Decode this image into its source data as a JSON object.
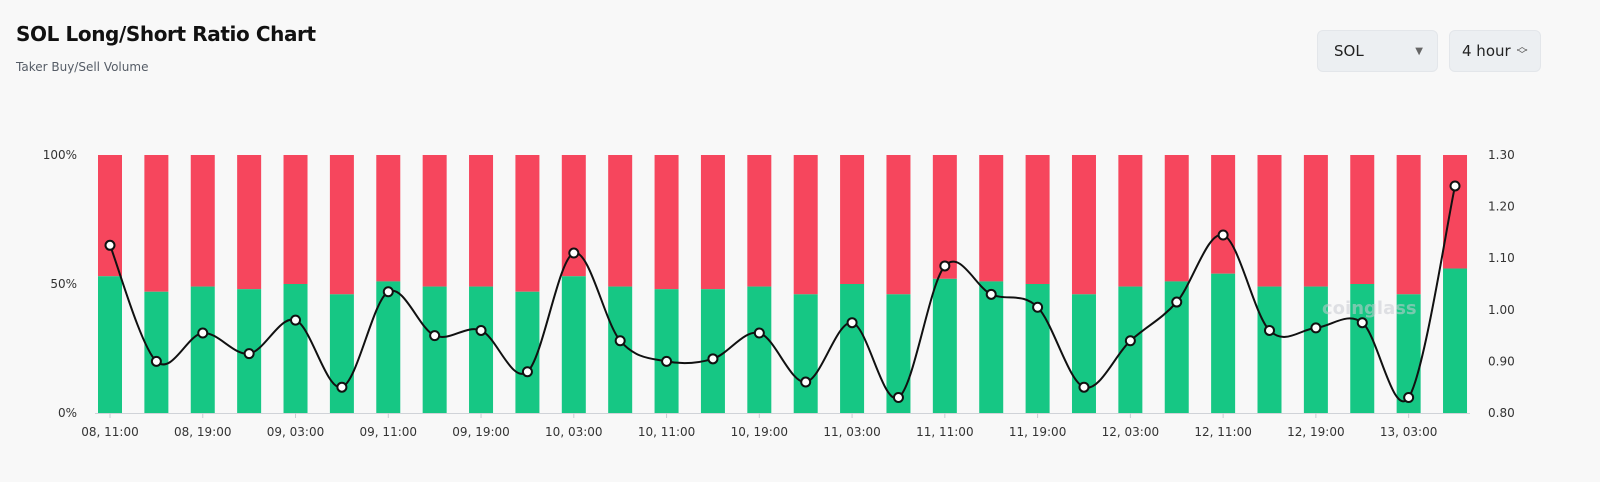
{
  "header": {
    "title": "SOL Long/Short Ratio Chart",
    "subtitle": "Taker Buy/Sell Volume"
  },
  "controls": {
    "symbol": {
      "selected": "SOL",
      "icon": "chevron-down-icon"
    },
    "interval": {
      "selected": "4 hour",
      "icon": "up-down-chevron-icon"
    }
  },
  "watermark": "coinglass",
  "colors": {
    "long": "#16c784",
    "short": "#f6465d",
    "line": "#111111",
    "background": "#f8f8f8"
  },
  "chart_data": {
    "type": "bar",
    "title": "SOL Long/Short Ratio Chart",
    "subtitle": "Taker Buy/Sell Volume",
    "x": [
      "08, 11:00",
      "08, 15:00",
      "08, 19:00",
      "08, 23:00",
      "09, 03:00",
      "09, 07:00",
      "09, 11:00",
      "09, 15:00",
      "09, 19:00",
      "09, 23:00",
      "10, 03:00",
      "10, 07:00",
      "10, 11:00",
      "10, 15:00",
      "10, 19:00",
      "10, 23:00",
      "11, 03:00",
      "11, 07:00",
      "11, 11:00",
      "11, 15:00",
      "11, 19:00",
      "11, 23:00",
      "12, 03:00",
      "12, 07:00",
      "12, 11:00",
      "12, 15:00",
      "12, 19:00",
      "12, 23:00",
      "13, 03:00",
      "13, 07:00"
    ],
    "x_tick_labels": [
      "08, 11:00",
      "08, 19:00",
      "09, 03:00",
      "09, 11:00",
      "09, 19:00",
      "10, 03:00",
      "10, 11:00",
      "10, 19:00",
      "11, 03:00",
      "11, 11:00",
      "11, 19:00",
      "12, 03:00",
      "12, 11:00",
      "12, 19:00",
      "13, 03:00"
    ],
    "left_axis": {
      "ticks": [
        "0%",
        "50%",
        "100%"
      ],
      "range": [
        0,
        100
      ],
      "unit": "%"
    },
    "right_axis": {
      "ticks": [
        "0.80",
        "0.90",
        "1.00",
        "1.10",
        "1.20",
        "1.30"
      ],
      "range": [
        0.8,
        1.3
      ]
    },
    "series": [
      {
        "values": [
          53,
          47,
          49,
          48,
          50,
          46,
          51,
          49,
          49,
          47,
          53,
          49,
          48,
          48,
          49,
          46,
          50,
          46,
          52,
          51,
          50,
          46,
          49,
          51,
          54,
          49,
          49,
          50,
          46,
          56
        ]
      },
      {
        "values": [
          47,
          53,
          51,
          52,
          50,
          54,
          49,
          51,
          51,
          53,
          47,
          51,
          52,
          52,
          51,
          54,
          50,
          54,
          48,
          49,
          50,
          54,
          51,
          49,
          46,
          51,
          51,
          50,
          54,
          44
        ]
      },
      {
        "values": [
          1.125,
          0.9,
          0.955,
          0.915,
          0.98,
          0.85,
          1.035,
          0.95,
          0.96,
          0.88,
          1.11,
          0.94,
          0.9,
          0.905,
          0.955,
          0.86,
          0.975,
          0.83,
          1.085,
          1.03,
          1.005,
          0.85,
          0.94,
          1.015,
          1.145,
          0.96,
          0.965,
          0.975,
          0.83,
          1.24
        ]
      }
    ],
    "grid": false,
    "legend": "none"
  }
}
